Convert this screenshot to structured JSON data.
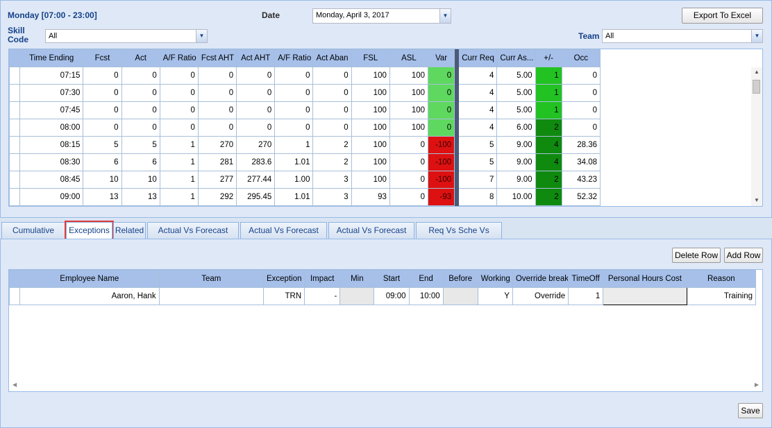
{
  "header": {
    "day_range": "Monday [07:00 - 23:00]",
    "date_label": "Date",
    "date_value": "Monday, April 3, 2017",
    "export_button": "Export To Excel",
    "skill_label_line1": "Skill",
    "skill_label_line2": "Code",
    "skill_value": "All",
    "team_label": "Team",
    "team_value": "All"
  },
  "interval_grid": {
    "columns": [
      "Time Ending",
      "Fcst",
      "Act",
      "A/F Ratio",
      "Fcst AHT",
      "Act AHT",
      "A/F Ratio",
      "Act Aban",
      "FSL",
      "ASL",
      "Var",
      "Curr Req",
      "Curr As...",
      "+/-",
      "Occ"
    ],
    "rows": [
      [
        "07:15",
        "0",
        "0",
        "0",
        "0",
        "0",
        "0",
        "0",
        "100",
        "100",
        "0",
        "4",
        "5.00",
        "1",
        "0"
      ],
      [
        "07:30",
        "0",
        "0",
        "0",
        "0",
        "0",
        "0",
        "0",
        "100",
        "100",
        "0",
        "4",
        "5.00",
        "1",
        "0"
      ],
      [
        "07:45",
        "0",
        "0",
        "0",
        "0",
        "0",
        "0",
        "0",
        "100",
        "100",
        "0",
        "4",
        "5.00",
        "1",
        "0"
      ],
      [
        "08:00",
        "0",
        "0",
        "0",
        "0",
        "0",
        "0",
        "0",
        "100",
        "100",
        "0",
        "4",
        "6.00",
        "2",
        "0"
      ],
      [
        "08:15",
        "5",
        "5",
        "1",
        "270",
        "270",
        "1",
        "2",
        "100",
        "0",
        "-100",
        "5",
        "9.00",
        "4",
        "28.36"
      ],
      [
        "08:30",
        "6",
        "6",
        "1",
        "281",
        "283.6",
        "1.01",
        "2",
        "100",
        "0",
        "-100",
        "5",
        "9.00",
        "4",
        "34.08"
      ],
      [
        "08:45",
        "10",
        "10",
        "1",
        "277",
        "277.44",
        "1.00",
        "3",
        "100",
        "0",
        "-100",
        "7",
        "9.00",
        "2",
        "43.23"
      ],
      [
        "09:00",
        "13",
        "13",
        "1",
        "292",
        "295.45",
        "1.01",
        "3",
        "93",
        "0",
        "-93",
        "8",
        "10.00",
        "2",
        "52.32"
      ]
    ],
    "var_colors": [
      "#5fd85f",
      "#dd1111"
    ],
    "diff_colors": [
      "#22c222",
      "#0f8a0f"
    ]
  },
  "tabs": [
    {
      "label": "Cumulative Ratio"
    },
    {
      "label": "Exceptions"
    },
    {
      "label": "Related"
    },
    {
      "label": "Actual Vs Forecast Tasks"
    },
    {
      "label": "Actual Vs Forecast AHT"
    },
    {
      "label": "Actual Vs Forecast SVL"
    },
    {
      "label": "Req Vs Sche Vs Assign"
    }
  ],
  "exceptions": {
    "delete_button": "Delete Row",
    "add_button": "Add Row",
    "columns": [
      "Employee Name",
      "Team",
      "Exception",
      "Impact",
      "Min",
      "Start",
      "End",
      "Before",
      "Working",
      "Override break",
      "TimeOff",
      "Personal Hours Cost",
      "Reason"
    ],
    "rows": [
      [
        "Aaron, Hank",
        "",
        "TRN",
        "-",
        "",
        "09:00",
        "10:00",
        "",
        "Y",
        "Override",
        "1",
        "",
        "Training"
      ]
    ],
    "save_button": "Save"
  }
}
